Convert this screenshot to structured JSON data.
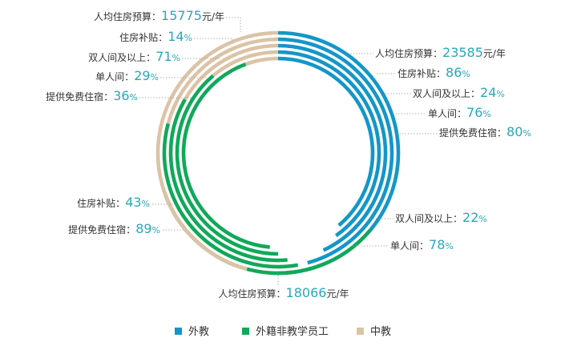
{
  "chart_data": {
    "type": "radial-bar",
    "series": [
      {
        "name": "外教",
        "color": "#1596c8",
        "metrics": [
          {
            "label": "人均住房预算",
            "value": 23585,
            "unit": "元/年",
            "fraction": 0.36
          },
          {
            "label": "住房补贴",
            "value": 86,
            "unit": "%",
            "fraction": 0.86
          },
          {
            "label": "双人间及以上",
            "value": 24,
            "unit": "%",
            "fraction": 0.24
          },
          {
            "label": "单人间",
            "value": 76,
            "unit": "%",
            "fraction": 0.76
          },
          {
            "label": "提供免费住宿",
            "value": 80,
            "unit": "%",
            "fraction": 0.8
          }
        ]
      },
      {
        "name": "外籍非教学员工",
        "color": "#11a85a",
        "metrics": [
          {
            "label": "人均住房预算",
            "value": 18066,
            "unit": "元/年",
            "fraction": 0.78
          },
          {
            "label": "住房补贴",
            "value": 43,
            "unit": "%",
            "fraction": 0.43
          },
          {
            "label": "双人间及以上",
            "value": 22,
            "unit": "%",
            "fraction": 0.22
          },
          {
            "label": "单人间",
            "value": 78,
            "unit": "%",
            "fraction": 0.78
          },
          {
            "label": "提供免费住宿",
            "value": 89,
            "unit": "%",
            "fraction": 0.89
          }
        ]
      },
      {
        "name": "中教",
        "color": "#dcc3a6",
        "metrics": [
          {
            "label": "人均住房预算",
            "value": 15775,
            "unit": "元/年",
            "fraction": 0.97
          },
          {
            "label": "住房补贴",
            "value": 14,
            "unit": "%",
            "fraction": 0.14
          },
          {
            "label": "双人间及以上",
            "value": 71,
            "unit": "%",
            "fraction": 0.71
          },
          {
            "label": "单人间",
            "value": 29,
            "unit": "%",
            "fraction": 0.29
          },
          {
            "label": "提供免费住宿",
            "value": 36,
            "unit": "%",
            "fraction": 0.36
          }
        ]
      }
    ],
    "legend": {
      "placement": "bottom",
      "items": [
        "外教",
        "外籍非教学员工",
        "中教"
      ]
    }
  }
}
